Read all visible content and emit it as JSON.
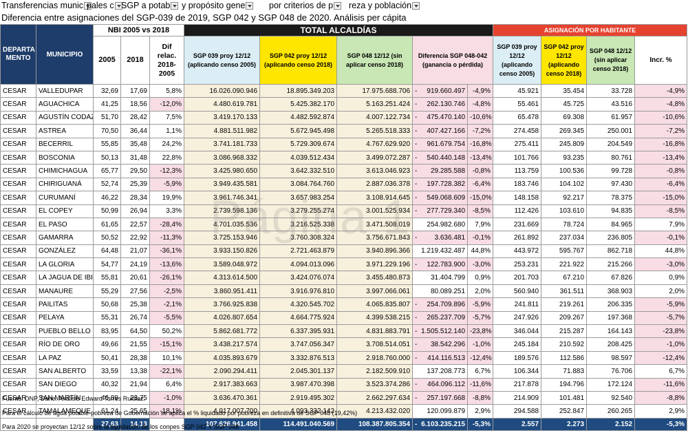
{
  "top_row": {
    "segments": [
      "Transferencias munic",
      "pales c",
      "SGP a potab",
      "y propósito gene",
      "por criterios de p",
      "reza y población"
    ]
  },
  "subtitle": "Diferencia entre asignaciones del SGP-039 de 2019, SGP 042 y SGP 048 de 2020. Análisis per cápita",
  "headers": {
    "nbi_group": "NBI 2005 vs 2018",
    "total_group": "TOTAL ALCALDÍAS",
    "asig_group": "ASIGNACIÓN POR HABITANTE",
    "departamento": "DEPARTA MENTO",
    "municipio": "MUNICIPIO",
    "y2005": "2005",
    "y2018": "2018",
    "dif_relac": "Dif relac. 2018-2005",
    "sgp039": "SGP 039 proy 12/12 (aplicando censo 2005)",
    "sgp042": "SGP 042 proy 12/12 (aplicando censo 2018)",
    "sgp048": "SGP 048 12/12 (sin aplicar censo 2018)",
    "diferencia": "Diferencia SGP 048-042 (ganancia o pérdida)",
    "h039": "SGP 039 proy 12/12 (aplicando censo 2005)",
    "h042": "SGP 042 proy 12/12 (aplicando censo 2018)",
    "h048": "SGP 048 12/12 (sin aplicar censo 2018)",
    "incr": "Incr. %"
  },
  "rows": [
    {
      "dept": "CESAR",
      "mun": "VALLEDUPAR",
      "n2005": "32,69",
      "n2018": "17,69",
      "dif": "5,8%",
      "s039": "16.026.090.946",
      "s042": "18.895.349.203",
      "s048": "17.975.688.706",
      "sign": "-",
      "diff": "919.660.497",
      "pct": "-4,9%",
      "h039": "45.921",
      "h042": "35.454",
      "h048": "33.728",
      "inc": "-4,9%"
    },
    {
      "dept": "CESAR",
      "mun": "AGUACHICA",
      "n2005": "41,25",
      "n2018": "18,56",
      "dif": "-12,0%",
      "s039": "4.480.619.781",
      "s042": "5.425.382.170",
      "s048": "5.163.251.424",
      "sign": "-",
      "diff": "262.130.746",
      "pct": "-4,8%",
      "h039": "55.461",
      "h042": "45.725",
      "h048": "43.516",
      "inc": "-4,8%"
    },
    {
      "dept": "CESAR",
      "mun": "AGUSTÍN CODAZ",
      "n2005": "51,70",
      "n2018": "28,42",
      "dif": "7,5%",
      "s039": "3.419.170.133",
      "s042": "4.482.592.874",
      "s048": "4.007.122.734",
      "sign": "-",
      "diff": "475.470.140",
      "pct": "-10,6%",
      "h039": "65.478",
      "h042": "69.308",
      "h048": "61.957",
      "inc": "-10,6%"
    },
    {
      "dept": "CESAR",
      "mun": "ASTREA",
      "n2005": "70,50",
      "n2018": "36,44",
      "dif": "1,1%",
      "s039": "4.881.511.982",
      "s042": "5.672.945.498",
      "s048": "5.265.518.333",
      "sign": "-",
      "diff": "407.427.166",
      "pct": "-7,2%",
      "h039": "274.458",
      "h042": "269.345",
      "h048": "250.001",
      "inc": "-7,2%"
    },
    {
      "dept": "CESAR",
      "mun": "BECERRIL",
      "n2005": "55,85",
      "n2018": "35,48",
      "dif": "24,2%",
      "s039": "3.741.181.733",
      "s042": "5.729.309.674",
      "s048": "4.767.629.920",
      "sign": "-",
      "diff": "961.679.754",
      "pct": "-16,8%",
      "h039": "275.411",
      "h042": "245.809",
      "h048": "204.549",
      "inc": "-16,8%"
    },
    {
      "dept": "CESAR",
      "mun": "BOSCONIA",
      "n2005": "50,13",
      "n2018": "31,48",
      "dif": "22,8%",
      "s039": "3.086.968.332",
      "s042": "4.039.512.434",
      "s048": "3.499.072.287",
      "sign": "-",
      "diff": "540.440.148",
      "pct": "-13,4%",
      "h039": "101.766",
      "h042": "93.235",
      "h048": "80.761",
      "inc": "-13,4%"
    },
    {
      "dept": "CESAR",
      "mun": "CHIMICHAGUA",
      "n2005": "65,77",
      "n2018": "29,50",
      "dif": "-12,3%",
      "s039": "3.425.980.650",
      "s042": "3.642.332.510",
      "s048": "3.613.046.923",
      "sign": "-",
      "diff": "29.285.588",
      "pct": "-0,8%",
      "h039": "113.759",
      "h042": "100.536",
      "h048": "99.728",
      "inc": "-0,8%"
    },
    {
      "dept": "CESAR",
      "mun": "CHIRIGUANÁ",
      "n2005": "52,74",
      "n2018": "25,39",
      "dif": "-5,9%",
      "s039": "3.949.435.581",
      "s042": "3.084.764.760",
      "s048": "2.887.036.378",
      "sign": "-",
      "diff": "197.728.382",
      "pct": "-6,4%",
      "h039": "183.746",
      "h042": "104.102",
      "h048": "97.430",
      "inc": "-6,4%"
    },
    {
      "dept": "CESAR",
      "mun": "CURUMANÍ",
      "n2005": "46,22",
      "n2018": "28,34",
      "dif": "19,9%",
      "s039": "3.961.746.341",
      "s042": "3.657.983.254",
      "s048": "3.108.914.645",
      "sign": "-",
      "diff": "549.068.609",
      "pct": "-15,0%",
      "h039": "148.158",
      "h042": "92.217",
      "h048": "78.375",
      "inc": "-15,0%"
    },
    {
      "dept": "CESAR",
      "mun": "EL COPEY",
      "n2005": "50,99",
      "n2018": "26,94",
      "dif": "3,3%",
      "s039": "2.739.598.136",
      "s042": "3.279.255.274",
      "s048": "3.001.525.934",
      "sign": "-",
      "diff": "277.729.340",
      "pct": "-8,5%",
      "h039": "112.426",
      "h042": "103.610",
      "h048": "94.835",
      "inc": "-8,5%"
    },
    {
      "dept": "CESAR",
      "mun": "EL PASO",
      "n2005": "61,65",
      "n2018": "22,57",
      "dif": "-28,4%",
      "s039": "4.701.035.536",
      "s042": "3.216.525.338",
      "s048": "3.471.508.019",
      "sign": "",
      "diff": "254.982.680",
      "pct": "7,9%",
      "h039": "231.669",
      "h042": "78.724",
      "h048": "84.965",
      "inc": "7,9%"
    },
    {
      "dept": "CESAR",
      "mun": "GAMARRA",
      "n2005": "50,52",
      "n2018": "22,92",
      "dif": "-11,3%",
      "s039": "3.725.153.946",
      "s042": "3.760.308.324",
      "s048": "3.756.671.843",
      "sign": "-",
      "diff": "3.636.481",
      "pct": "-0,1%",
      "h039": "261.892",
      "h042": "237.034",
      "h048": "236.805",
      "inc": "-0,1%"
    },
    {
      "dept": "CESAR",
      "mun": "GONZÁLEZ",
      "n2005": "64,48",
      "n2018": "21,07",
      "dif": "-36,1%",
      "s039": "3.933.150.826",
      "s042": "2.721.463.879",
      "s048": "3.940.896.366",
      "sign": "",
      "diff": "1.219.432.487",
      "pct": "44,8%",
      "h039": "443.972",
      "h042": "595.767",
      "h048": "862.718",
      "inc": "44,8%"
    },
    {
      "dept": "CESAR",
      "mun": "LA GLORIA",
      "n2005": "54,77",
      "n2018": "24,19",
      "dif": "-13,6%",
      "s039": "3.589.048.972",
      "s042": "4.094.013.096",
      "s048": "3.971.229.196",
      "sign": "-",
      "diff": "122.783.900",
      "pct": "-3,0%",
      "h039": "253.231",
      "h042": "221.922",
      "h048": "215.266",
      "inc": "-3,0%"
    },
    {
      "dept": "CESAR",
      "mun": "LA JAGUA DE IBI",
      "n2005": "55,81",
      "n2018": "20,61",
      "dif": "-26,1%",
      "s039": "4.313.614.500",
      "s042": "3.424.076.074",
      "s048": "3.455.480.873",
      "sign": "",
      "diff": "31.404.799",
      "pct": "0,9%",
      "h039": "201.703",
      "h042": "67.210",
      "h048": "67.826",
      "inc": "0,9%"
    },
    {
      "dept": "CESAR",
      "mun": "MANAURE",
      "n2005": "55,29",
      "n2018": "27,56",
      "dif": "-2,5%",
      "s039": "3.860.951.411",
      "s042": "3.916.976.810",
      "s048": "3.997.066.061",
      "sign": "",
      "diff": "80.089.251",
      "pct": "2,0%",
      "h039": "560.940",
      "h042": "361.511",
      "h048": "368.903",
      "inc": "2,0%"
    },
    {
      "dept": "CESAR",
      "mun": "PAILITAS",
      "n2005": "50,68",
      "n2018": "25,38",
      "dif": "-2,1%",
      "s039": "3.766.925.838",
      "s042": "4.320.545.702",
      "s048": "4.065.835.807",
      "sign": "-",
      "diff": "254.709.896",
      "pct": "-5,9%",
      "h039": "241.811",
      "h042": "219.261",
      "h048": "206.335",
      "inc": "-5,9%"
    },
    {
      "dept": "CESAR",
      "mun": "PELAYA",
      "n2005": "55,31",
      "n2018": "26,74",
      "dif": "-5,5%",
      "s039": "4.026.807.654",
      "s042": "4.664.775.924",
      "s048": "4.399.538.215",
      "sign": "-",
      "diff": "265.237.709",
      "pct": "-5,7%",
      "h039": "247.926",
      "h042": "209.267",
      "h048": "197.368",
      "inc": "-5,7%"
    },
    {
      "dept": "CESAR",
      "mun": "PUEBLO BELLO",
      "n2005": "83,95",
      "n2018": "64,50",
      "dif": "50,2%",
      "s039": "5.862.681.772",
      "s042": "6.337.395.931",
      "s048": "4.831.883.791",
      "sign": "-",
      "diff": "1.505.512.140",
      "pct": "-23,8%",
      "h039": "346.044",
      "h042": "215.287",
      "h048": "164.143",
      "inc": "-23,8%"
    },
    {
      "dept": "CESAR",
      "mun": "RÍO DE ORO",
      "n2005": "49,66",
      "n2018": "21,55",
      "dif": "-15,1%",
      "s039": "3.438.217.574",
      "s042": "3.747.056.347",
      "s048": "3.708.514.051",
      "sign": "-",
      "diff": "38.542.296",
      "pct": "-1,0%",
      "h039": "245.184",
      "h042": "210.592",
      "h048": "208.425",
      "inc": "-1,0%"
    },
    {
      "dept": "CESAR",
      "mun": "LA PAZ",
      "n2005": "50,41",
      "n2018": "28,38",
      "dif": "10,1%",
      "s039": "4.035.893.679",
      "s042": "3.332.876.513",
      "s048": "2.918.760.000",
      "sign": "-",
      "diff": "414.116.513",
      "pct": "-12,4%",
      "h039": "189.576",
      "h042": "112.586",
      "h048": "98.597",
      "inc": "-12,4%"
    },
    {
      "dept": "CESAR",
      "mun": "SAN ALBERTO",
      "n2005": "33,59",
      "n2018": "13,38",
      "dif": "-22,1%",
      "s039": "2.090.294.411",
      "s042": "2.045.301.137",
      "s048": "2.182.509.910",
      "sign": "",
      "diff": "137.208.773",
      "pct": "6,7%",
      "h039": "106.344",
      "h042": "71.883",
      "h048": "76.706",
      "inc": "6,7%"
    },
    {
      "dept": "CESAR",
      "mun": "SAN DIEGO",
      "n2005": "40,32",
      "n2018": "21,94",
      "dif": "6,4%",
      "s039": "2.917.383.663",
      "s042": "3.987.470.398",
      "s048": "3.523.374.286",
      "sign": "-",
      "diff": "464.096.112",
      "pct": "-11,6%",
      "h039": "217.878",
      "h042": "194.796",
      "h048": "172.124",
      "inc": "-11,6%"
    },
    {
      "dept": "CESAR",
      "mun": "SAN MARTÍN",
      "n2005": "46,89",
      "n2018": "23,75",
      "dif": "-1,0%",
      "s039": "3.636.470.361",
      "s042": "2.919.495.302",
      "s048": "2.662.297.634",
      "sign": "-",
      "diff": "257.197.668",
      "pct": "-8,8%",
      "h039": "214.909",
      "h042": "101.481",
      "h048": "92.540",
      "inc": "-8,8%"
    },
    {
      "dept": "CESAR",
      "mun": "TAMALAMEQUE",
      "n2005": "61,24",
      "n2018": "25,65",
      "dif": "-18,1%",
      "s039": "4.017.007.700",
      "s042": "4.093.332.142",
      "s048": "4.213.432.020",
      "sign": "",
      "diff": "120.099.879",
      "pct": "2,9%",
      "h039": "294.588",
      "h042": "252.847",
      "h048": "260.265",
      "inc": "2,9%"
    }
  ],
  "totals": {
    "n2005": "27,63",
    "n2018": "14,13",
    "s039": "107.626.941.458",
    "s042": "114.491.040.569",
    "s048": "108.387.805.354",
    "sign": "-",
    "diff": "6.103.235.215",
    "pct": "-5,3%",
    "h039": "2.557",
    "h042": "2.273",
    "h048": "2.152",
    "inc": "-5,3%"
  },
  "footnotes": [
    "Fuente: DNP, Dane. Análisis Edward Torres Ruidiaz.",
    "Para el cálculo de agua potable-pobreza de Gobernación se aplica el % liquidado por pobreza en definitiva de SGP 048 (19,42%)",
    "Para 2020 se proyectan 12/12 sobre la liquidación de los conpes SGP 042 Y SGP 048"
  ],
  "watermark": "Página 1",
  "colors": {
    "navy": "#1f3d6b",
    "header_red": "#e5432f",
    "yellow": "#ffe600",
    "light_blue": "#dbeef5",
    "light_green": "#c8e7b4",
    "pink": "#f8dde5",
    "beige": "#f7f0dd"
  }
}
